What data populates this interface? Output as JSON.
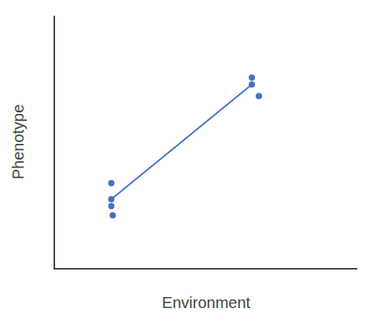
{
  "chart_data": {
    "type": "scatter",
    "xlabel": "Environment",
    "ylabel": "Phenotype",
    "xlim": [
      0.2,
      4.5
    ],
    "ylim": [
      0.5,
      6.0
    ],
    "xticks": [],
    "yticks": [],
    "tick_labels": false,
    "grid": false,
    "series": [
      {
        "type": "line",
        "color": "#4472C4",
        "x": [
          1,
          3
        ],
        "values": [
          2.0,
          4.5
        ]
      },
      {
        "type": "scatter",
        "color": "#4472C4",
        "x": [
          1.0,
          1.0,
          1.0,
          1.02
        ],
        "values": [
          2.35,
          2.0,
          1.85,
          1.65
        ]
      },
      {
        "type": "scatter",
        "color": "#4472C4",
        "x": [
          3.0,
          3.0,
          3.1
        ],
        "values": [
          4.65,
          4.5,
          4.25
        ]
      }
    ]
  }
}
